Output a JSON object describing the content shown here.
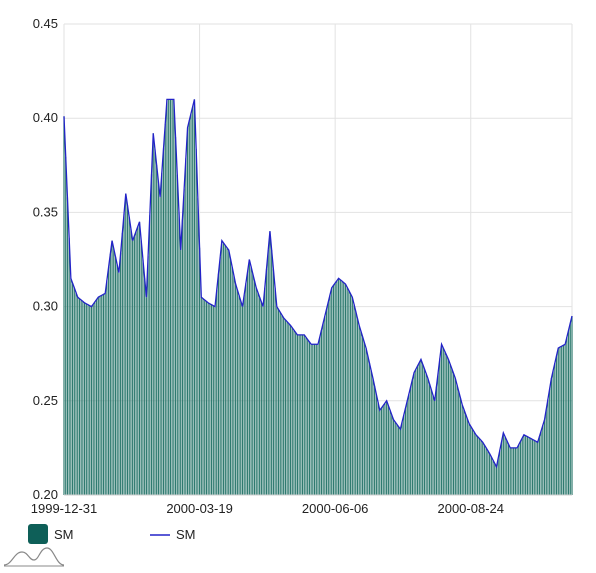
{
  "colors": {
    "bar_fill": "#2e7a6f",
    "bar_legend": "#0e5f58",
    "line": "#2323c8",
    "grid": "#e2e2e2",
    "text": "#222222"
  },
  "legend": {
    "items": [
      {
        "label": "SM",
        "kind": "bar",
        "icon": "square-swatch-icon"
      },
      {
        "label": "SM",
        "kind": "line",
        "icon": "line-swatch-icon"
      }
    ]
  },
  "logo_icon": "mountain-wave-icon",
  "chart_data": {
    "type": "bar",
    "title": "",
    "xlabel": "",
    "ylabel": "",
    "ylim": [
      0.2,
      0.45
    ],
    "yticks": [
      "0.20",
      "0.25",
      "0.30",
      "0.35",
      "0.40",
      "0.45"
    ],
    "ytick_values": [
      0.2,
      0.25,
      0.3,
      0.35,
      0.4,
      0.45
    ],
    "xticks": [
      "1999-12-31",
      "2000-03-19",
      "2000-06-06",
      "2000-08-24"
    ],
    "xtick_dates": [
      "1999-12-31",
      "2000-03-19",
      "2000-06-06",
      "2000-08-24"
    ],
    "x_range": [
      "1999-12-31",
      "2000-10-22"
    ],
    "grid": true,
    "legend_position": "bottom-left",
    "series": [
      {
        "name": "SM",
        "type": "bar"
      },
      {
        "name": "SM",
        "type": "line"
      }
    ],
    "x": [
      "1999-12-31",
      "2000-01-04",
      "2000-01-08",
      "2000-01-12",
      "2000-01-16",
      "2000-01-20",
      "2000-01-24",
      "2000-01-28",
      "2000-02-01",
      "2000-02-05",
      "2000-02-09",
      "2000-02-13",
      "2000-02-17",
      "2000-02-21",
      "2000-02-25",
      "2000-02-29",
      "2000-03-04",
      "2000-03-08",
      "2000-03-12",
      "2000-03-16",
      "2000-03-20",
      "2000-03-24",
      "2000-03-28",
      "2000-04-01",
      "2000-04-05",
      "2000-04-09",
      "2000-04-13",
      "2000-04-17",
      "2000-04-21",
      "2000-04-25",
      "2000-04-29",
      "2000-05-03",
      "2000-05-07",
      "2000-05-11",
      "2000-05-15",
      "2000-05-19",
      "2000-05-23",
      "2000-05-27",
      "2000-05-31",
      "2000-06-04",
      "2000-06-08",
      "2000-06-12",
      "2000-06-16",
      "2000-06-20",
      "2000-06-24",
      "2000-06-28",
      "2000-07-02",
      "2000-07-06",
      "2000-07-10",
      "2000-07-14",
      "2000-07-18",
      "2000-07-22",
      "2000-07-26",
      "2000-07-30",
      "2000-08-03",
      "2000-08-07",
      "2000-08-11",
      "2000-08-15",
      "2000-08-19",
      "2000-08-23",
      "2000-08-27",
      "2000-08-31",
      "2000-09-04",
      "2000-09-08",
      "2000-09-12",
      "2000-09-16",
      "2000-09-20",
      "2000-09-24",
      "2000-09-28",
      "2000-10-02",
      "2000-10-06",
      "2000-10-10",
      "2000-10-14",
      "2000-10-18",
      "2000-10-22"
    ],
    "values": [
      0.401,
      0.315,
      0.305,
      0.302,
      0.3,
      0.305,
      0.307,
      0.335,
      0.318,
      0.36,
      0.335,
      0.345,
      0.305,
      0.392,
      0.358,
      0.41,
      0.41,
      0.33,
      0.395,
      0.41,
      0.305,
      0.302,
      0.3,
      0.335,
      0.33,
      0.312,
      0.3,
      0.325,
      0.31,
      0.3,
      0.34,
      0.3,
      0.294,
      0.29,
      0.285,
      0.285,
      0.28,
      0.28,
      0.295,
      0.31,
      0.315,
      0.312,
      0.305,
      0.29,
      0.278,
      0.262,
      0.245,
      0.25,
      0.24,
      0.235,
      0.25,
      0.265,
      0.272,
      0.262,
      0.25,
      0.28,
      0.272,
      0.262,
      0.248,
      0.238,
      0.232,
      0.228,
      0.222,
      0.215,
      0.233,
      0.225,
      0.225,
      0.232,
      0.23,
      0.228,
      0.24,
      0.262,
      0.278,
      0.28,
      0.295
    ]
  }
}
